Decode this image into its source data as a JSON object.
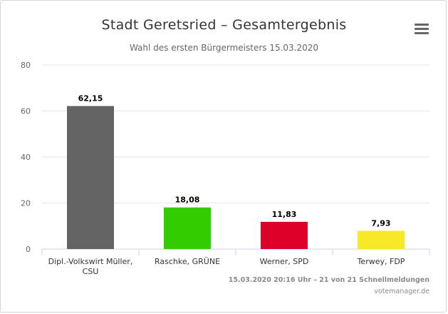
{
  "title": "Stadt Geretsried – Gesamtergebnis",
  "subtitle": "Wahl des ersten Bürgermeisters 15.03.2020",
  "menu_icon": "hamburger-menu-icon",
  "credits": {
    "status": "15.03.2020 20:16 Uhr – 21 von 21 Schnellmeldungen",
    "source": "votemanager.de"
  },
  "chart_data": {
    "type": "bar",
    "title": "Stadt Geretsried – Gesamtergebnis",
    "subtitle": "Wahl des ersten Bürgermeisters 15.03.2020",
    "categories": [
      [
        "Dipl.-Volkswirt Müller,",
        "CSU"
      ],
      [
        "Raschke, GRÜNE"
      ],
      [
        "Werner, SPD"
      ],
      [
        "Terwey, FDP"
      ]
    ],
    "values": [
      62.15,
      18.08,
      11.83,
      7.93
    ],
    "value_labels": [
      "62,15",
      "18,08",
      "11,83",
      "7,93"
    ],
    "colors": [
      "#646464",
      "#33cc00",
      "#dd0027",
      "#f7e928"
    ],
    "yticks": [
      0,
      20,
      40,
      60,
      80
    ],
    "ylim": [
      0,
      80
    ],
    "grid": true,
    "legend": "none"
  }
}
